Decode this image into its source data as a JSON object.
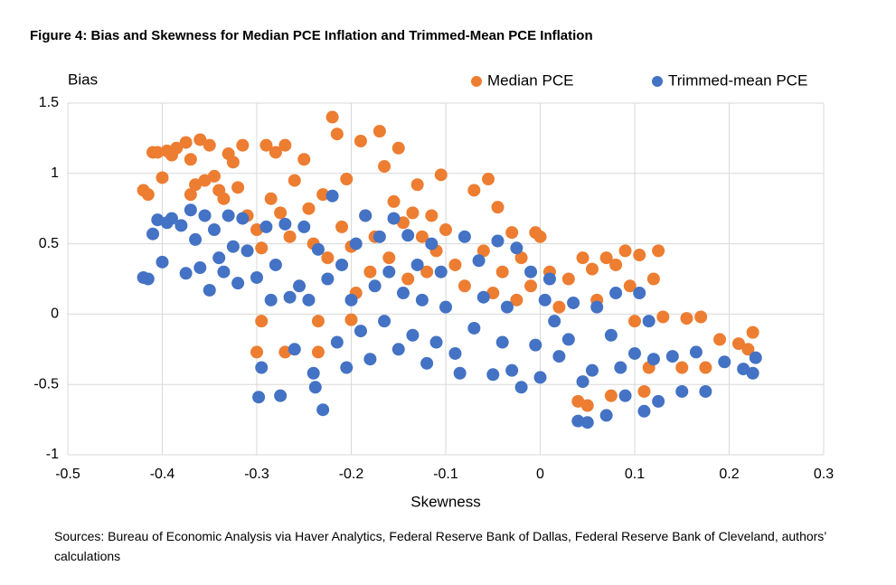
{
  "chart_data": {
    "type": "scatter",
    "title": "Figure 4: Bias and Skewness for Median PCE Inflation and Trimmed-Mean PCE Inflation",
    "y_label": "Bias",
    "x_label": "Skewness",
    "source": "Sources: Bureau of Economic Analysis via Haver Analytics, Federal Reserve Bank of Dallas, Federal Reserve Bank of Cleveland, authors’ calculations",
    "xlim": [
      -0.5,
      0.3
    ],
    "xticks": [
      -0.5,
      -0.4,
      -0.3,
      -0.2,
      -0.1,
      0,
      0.1,
      0.2,
      0.3
    ],
    "ylim": [
      -1,
      1.5
    ],
    "yticks": [
      -1,
      -0.5,
      0,
      0.5,
      1,
      1.5
    ],
    "grid": true,
    "legend": "top-right",
    "series": [
      {
        "name": "Median PCE",
        "color": "#ED7D31",
        "x": [
          -0.42,
          -0.415,
          -0.41,
          -0.405,
          -0.4,
          -0.395,
          -0.39,
          -0.385,
          -0.375,
          -0.37,
          -0.37,
          -0.365,
          -0.36,
          -0.355,
          -0.35,
          -0.345,
          -0.34,
          -0.335,
          -0.33,
          -0.325,
          -0.32,
          -0.315,
          -0.31,
          -0.3,
          -0.295,
          -0.29,
          -0.285,
          -0.28,
          -0.275,
          -0.27,
          -0.265,
          -0.26,
          -0.25,
          -0.245,
          -0.24,
          -0.235,
          -0.23,
          -0.225,
          -0.22,
          -0.215,
          -0.21,
          -0.205,
          -0.2,
          -0.195,
          -0.19,
          -0.185,
          -0.18,
          -0.175,
          -0.17,
          -0.165,
          -0.16,
          -0.155,
          -0.15,
          -0.145,
          -0.14,
          -0.135,
          -0.13,
          -0.125,
          -0.12,
          -0.115,
          -0.11,
          -0.105,
          -0.1,
          -0.09,
          -0.08,
          -0.07,
          -0.06,
          -0.055,
          -0.05,
          -0.045,
          -0.04,
          -0.03,
          -0.025,
          -0.02,
          -0.01,
          -0.005,
          0,
          0.01,
          0.02,
          0.03,
          0.04,
          0.045,
          0.05,
          0.055,
          0.06,
          0.07,
          0.075,
          0.08,
          0.09,
          0.095,
          0.1,
          0.105,
          0.11,
          0.115,
          0.12,
          0.125,
          0.13,
          0.15,
          0.155,
          0.17,
          0.175,
          0.19,
          0.21,
          0.22,
          0.225,
          -0.3,
          -0.295,
          -0.27,
          -0.235,
          -0.2
        ],
        "values": [
          0.88,
          0.85,
          1.15,
          1.15,
          0.97,
          1.16,
          1.13,
          1.18,
          1.22,
          1.1,
          0.85,
          0.92,
          1.24,
          0.95,
          1.2,
          0.98,
          0.88,
          0.82,
          1.14,
          1.08,
          0.9,
          1.2,
          0.7,
          0.6,
          0.47,
          1.2,
          0.82,
          1.15,
          0.72,
          1.2,
          0.55,
          0.95,
          1.1,
          0.75,
          0.5,
          -0.05,
          0.85,
          0.4,
          1.4,
          1.28,
          0.62,
          0.96,
          0.48,
          0.15,
          1.23,
          0.7,
          0.3,
          0.55,
          1.3,
          1.05,
          0.4,
          0.8,
          1.18,
          0.65,
          0.25,
          0.72,
          0.92,
          0.55,
          0.3,
          0.7,
          0.45,
          0.99,
          0.6,
          0.35,
          0.2,
          0.88,
          0.45,
          0.96,
          0.15,
          0.76,
          0.3,
          0.58,
          0.1,
          0.4,
          0.2,
          0.58,
          0.55,
          0.3,
          0.05,
          0.25,
          -0.62,
          0.4,
          -0.65,
          0.32,
          0.1,
          0.4,
          -0.58,
          0.35,
          0.45,
          0.2,
          -0.05,
          0.42,
          -0.55,
          -0.38,
          0.25,
          0.45,
          -0.02,
          -0.38,
          -0.03,
          -0.02,
          -0.38,
          -0.18,
          -0.21,
          -0.25,
          -0.13,
          -0.27,
          -0.05,
          -0.27,
          -0.27,
          -0.04
        ]
      },
      {
        "name": "Trimmed-mean PCE",
        "color": "#4472C4",
        "x": [
          -0.42,
          -0.415,
          -0.41,
          -0.405,
          -0.4,
          -0.395,
          -0.39,
          -0.38,
          -0.375,
          -0.37,
          -0.365,
          -0.36,
          -0.355,
          -0.35,
          -0.345,
          -0.34,
          -0.335,
          -0.33,
          -0.325,
          -0.32,
          -0.315,
          -0.31,
          -0.3,
          -0.295,
          -0.298,
          -0.29,
          -0.285,
          -0.28,
          -0.275,
          -0.27,
          -0.265,
          -0.26,
          -0.255,
          -0.25,
          -0.245,
          -0.24,
          -0.238,
          -0.235,
          -0.23,
          -0.225,
          -0.22,
          -0.215,
          -0.21,
          -0.205,
          -0.2,
          -0.195,
          -0.19,
          -0.185,
          -0.18,
          -0.175,
          -0.17,
          -0.165,
          -0.16,
          -0.155,
          -0.15,
          -0.145,
          -0.14,
          -0.135,
          -0.13,
          -0.125,
          -0.12,
          -0.115,
          -0.11,
          -0.105,
          -0.1,
          -0.09,
          -0.085,
          -0.08,
          -0.07,
          -0.065,
          -0.06,
          -0.05,
          -0.045,
          -0.04,
          -0.035,
          -0.03,
          -0.025,
          -0.02,
          -0.01,
          -0.005,
          0,
          0.005,
          0.01,
          0.015,
          0.02,
          0.03,
          0.035,
          0.04,
          0.045,
          0.05,
          0.055,
          0.06,
          0.07,
          0.075,
          0.08,
          0.085,
          0.09,
          0.1,
          0.105,
          0.11,
          0.115,
          0.12,
          0.125,
          0.14,
          0.15,
          0.165,
          0.175,
          0.195,
          0.215,
          0.225,
          0.228
        ],
        "values": [
          0.26,
          0.25,
          0.57,
          0.67,
          0.37,
          0.65,
          0.68,
          0.63,
          0.29,
          0.74,
          0.53,
          0.33,
          0.7,
          0.17,
          0.6,
          0.4,
          0.3,
          0.7,
          0.48,
          0.22,
          0.68,
          0.45,
          0.26,
          -0.38,
          -0.59,
          0.62,
          0.1,
          0.35,
          -0.58,
          0.64,
          0.12,
          -0.25,
          0.2,
          0.62,
          0.1,
          -0.42,
          -0.52,
          0.46,
          -0.68,
          0.25,
          0.84,
          -0.2,
          0.35,
          -0.38,
          0.1,
          0.5,
          -0.12,
          0.7,
          -0.32,
          0.2,
          0.55,
          -0.05,
          0.3,
          0.68,
          -0.25,
          0.15,
          0.56,
          -0.15,
          0.35,
          0.1,
          -0.35,
          0.5,
          -0.2,
          0.3,
          0.05,
          -0.28,
          -0.42,
          0.55,
          -0.1,
          0.38,
          0.12,
          -0.43,
          0.52,
          -0.2,
          0.05,
          -0.4,
          0.47,
          -0.52,
          0.3,
          -0.22,
          -0.45,
          0.1,
          0.25,
          -0.05,
          -0.3,
          -0.18,
          0.08,
          -0.76,
          -0.48,
          -0.77,
          -0.4,
          0.05,
          -0.72,
          -0.15,
          0.15,
          -0.38,
          -0.58,
          -0.28,
          0.15,
          -0.69,
          -0.05,
          -0.32,
          -0.62,
          -0.3,
          -0.55,
          -0.27,
          -0.55,
          -0.34,
          -0.39,
          -0.42,
          -0.31
        ]
      }
    ]
  }
}
